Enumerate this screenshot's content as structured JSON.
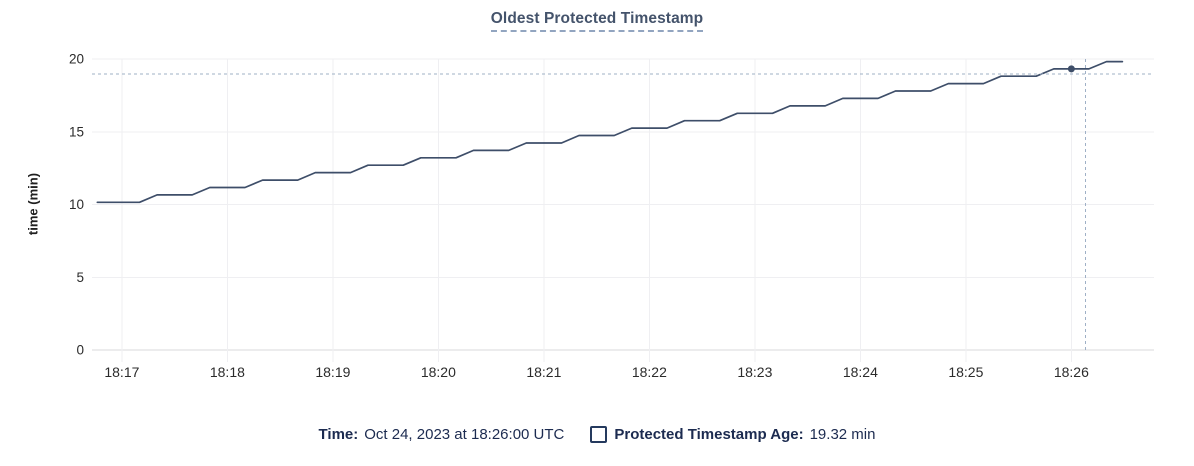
{
  "chart": {
    "title": "Oldest Protected Timestamp",
    "ylabel": "time (min)"
  },
  "legend": {
    "time_label": "Time:",
    "time_value": "Oct 24, 2023 at 18:26:00 UTC",
    "series_label": "Protected Timestamp Age:",
    "series_value": "19.32 min"
  },
  "colors": {
    "title_text": "#44536b",
    "legend_text": "#1c2b50",
    "line": "#3e4e69",
    "point": "#3e4e69",
    "crosshair": "#9fb0c6",
    "grid": "#efeff2",
    "axis": "#d9d9db",
    "tick_text": "#2b2b2b"
  },
  "chart_data": {
    "type": "line",
    "title": "Oldest Protected Timestamp",
    "xlabel": "",
    "ylabel": "time (min)",
    "ylim": [
      0,
      20
    ],
    "y_ticks": [
      0,
      5,
      10,
      15,
      20
    ],
    "x_ticks": [
      "18:17",
      "18:18",
      "18:19",
      "18:20",
      "18:21",
      "18:22",
      "18:23",
      "18:24",
      "18:25",
      "18:26"
    ],
    "x_domain": [
      "18:16:43",
      "18:26:47"
    ],
    "grid": true,
    "legend_position": "bottom",
    "series": [
      {
        "name": "Protected Timestamp Age",
        "unit": "min",
        "color": "#3e4e69",
        "points": [
          [
            "18:16:46",
            10.15
          ],
          [
            "18:17:10",
            10.15
          ],
          [
            "18:17:20",
            10.66
          ],
          [
            "18:17:40",
            10.66
          ],
          [
            "18:17:50",
            11.17
          ],
          [
            "18:18:10",
            11.17
          ],
          [
            "18:18:20",
            11.68
          ],
          [
            "18:18:40",
            11.68
          ],
          [
            "18:18:50",
            12.19
          ],
          [
            "18:19:10",
            12.19
          ],
          [
            "18:19:20",
            12.7
          ],
          [
            "18:19:40",
            12.7
          ],
          [
            "18:19:50",
            13.21
          ],
          [
            "18:20:10",
            13.21
          ],
          [
            "18:20:20",
            13.72
          ],
          [
            "18:20:40",
            13.72
          ],
          [
            "18:20:50",
            14.23
          ],
          [
            "18:21:10",
            14.23
          ],
          [
            "18:21:20",
            14.74
          ],
          [
            "18:21:40",
            14.74
          ],
          [
            "18:21:50",
            15.25
          ],
          [
            "18:22:10",
            15.25
          ],
          [
            "18:22:20",
            15.76
          ],
          [
            "18:22:40",
            15.76
          ],
          [
            "18:22:50",
            16.27
          ],
          [
            "18:23:10",
            16.27
          ],
          [
            "18:23:20",
            16.78
          ],
          [
            "18:23:40",
            16.78
          ],
          [
            "18:23:50",
            17.29
          ],
          [
            "18:24:10",
            17.29
          ],
          [
            "18:24:20",
            17.8
          ],
          [
            "18:24:40",
            17.8
          ],
          [
            "18:24:50",
            18.31
          ],
          [
            "18:25:10",
            18.31
          ],
          [
            "18:25:20",
            18.82
          ],
          [
            "18:25:40",
            18.82
          ],
          [
            "18:25:50",
            19.32
          ],
          [
            "18:26:10",
            19.32
          ],
          [
            "18:26:20",
            19.82
          ],
          [
            "18:26:29",
            19.82
          ]
        ]
      }
    ],
    "highlight_point": {
      "time": "18:26:00",
      "value": 19.32
    },
    "crosshair": {
      "time": "18:26:08",
      "value": 18.97
    }
  }
}
